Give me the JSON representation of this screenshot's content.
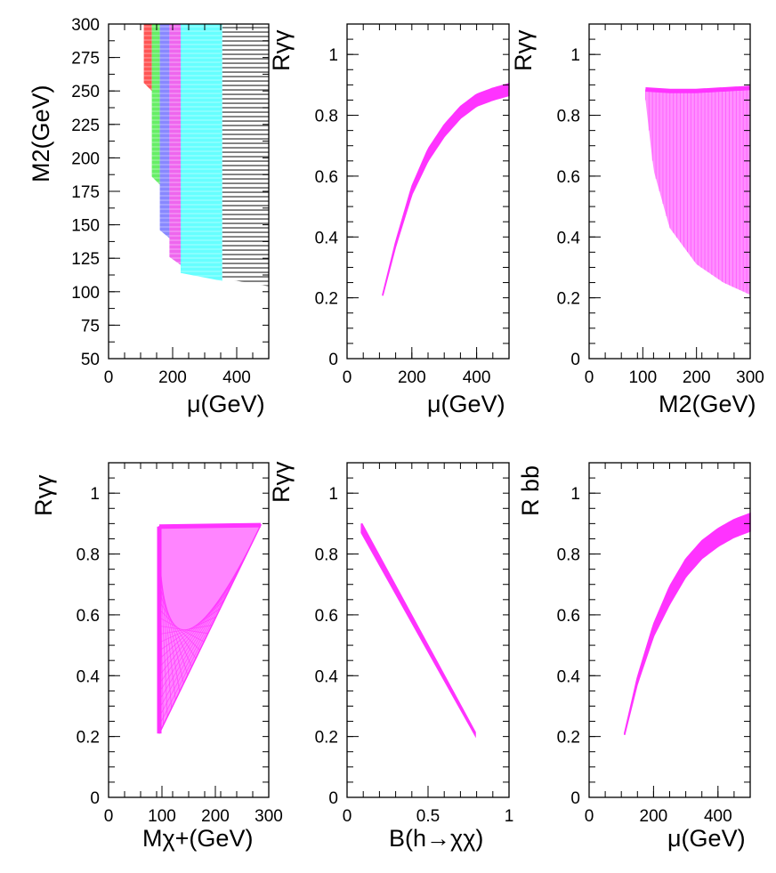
{
  "colors": {
    "magenta": "#ff33ff",
    "red": "#ff5555",
    "green": "#66ee66",
    "blue": "#8888ff",
    "violet": "#ee66ee",
    "cyan": "#66ffff",
    "black": "#555555"
  },
  "chart_data": [
    {
      "type": "scatter",
      "id": "p1",
      "title": "",
      "xlabel": "μ(GeV)",
      "ylabel": "M2(GeV)",
      "xlim": [
        0,
        500
      ],
      "ylim": [
        50,
        300
      ],
      "xticks": [
        0,
        200,
        400
      ],
      "yticks": [
        50,
        75,
        100,
        125,
        150,
        175,
        200,
        225,
        250,
        275,
        300
      ],
      "xtick_labels": [
        "0",
        "200",
        "400"
      ],
      "ytick_labels": [
        "50",
        "75",
        "100",
        "125",
        "150",
        "175",
        "200",
        "225",
        "250",
        "275",
        "300"
      ],
      "grid": false,
      "bands": [
        {
          "color": "red",
          "mu_range": [
            110,
            135
          ],
          "m2_min": 250
        },
        {
          "color": "green",
          "mu_range": [
            135,
            160
          ],
          "m2_min": 180
        },
        {
          "color": "blue",
          "mu_range": [
            160,
            190
          ],
          "m2_min": 140
        },
        {
          "color": "violet",
          "mu_range": [
            190,
            225
          ],
          "m2_min": 120
        },
        {
          "color": "cyan",
          "mu_range": [
            225,
            355
          ],
          "m2_min": 108
        },
        {
          "color": "black",
          "mu_range": [
            355,
            500
          ],
          "m2_min": 104
        }
      ]
    },
    {
      "type": "scatter",
      "id": "p2",
      "xlabel": "μ(GeV)",
      "ylabel": "Rγγ",
      "xlim": [
        0,
        500
      ],
      "ylim": [
        0,
        1.1
      ],
      "xticks": [
        0,
        200,
        400
      ],
      "yticks": [
        0,
        0.2,
        0.4,
        0.6,
        0.8,
        1
      ],
      "xtick_labels": [
        "0",
        "200",
        "400"
      ],
      "ytick_labels": [
        "0",
        "0.2",
        "0.4",
        "0.6",
        "0.8",
        "1"
      ],
      "x": [
        110,
        150,
        200,
        250,
        300,
        350,
        400,
        450,
        500
      ],
      "y": [
        0.21,
        0.38,
        0.56,
        0.68,
        0.76,
        0.82,
        0.86,
        0.88,
        0.895
      ],
      "band_width": 0.03
    },
    {
      "type": "scatter",
      "id": "p3",
      "xlabel": "M2(GeV)",
      "ylabel": "Rγγ",
      "xlim": [
        0,
        300
      ],
      "ylim": [
        0,
        1.1
      ],
      "xticks": [
        0,
        100,
        200,
        300
      ],
      "yticks": [
        0,
        0.2,
        0.4,
        0.6,
        0.8,
        1
      ],
      "xtick_labels": [
        "0",
        "100",
        "200",
        "300"
      ],
      "ytick_labels": [
        "0",
        "0.2",
        "0.4",
        "0.6",
        "0.8",
        "1"
      ],
      "upper": {
        "x": [
          105,
          150,
          200,
          250,
          300
        ],
        "y": [
          0.885,
          0.88,
          0.88,
          0.885,
          0.89
        ]
      },
      "lower": {
        "x": [
          105,
          120,
          150,
          200,
          250,
          300
        ],
        "y": [
          0.85,
          0.62,
          0.43,
          0.31,
          0.25,
          0.21
        ]
      }
    },
    {
      "type": "scatter",
      "id": "p4",
      "xlabel": "Mχ+(GeV)",
      "ylabel": "Rγγ",
      "xlim": [
        0,
        300
      ],
      "ylim": [
        0,
        1.1
      ],
      "xticks": [
        0,
        100,
        200,
        300
      ],
      "yticks": [
        0,
        0.2,
        0.4,
        0.6,
        0.8,
        1
      ],
      "xtick_labels": [
        "0",
        "100",
        "200",
        "300"
      ],
      "ytick_labels": [
        "0",
        "0.2",
        "0.4",
        "0.6",
        "0.8",
        "1"
      ],
      "polygon": {
        "x": [
          95,
          285,
          95
        ],
        "y": [
          0.89,
          0.895,
          0.21
        ]
      }
    },
    {
      "type": "scatter",
      "id": "p5",
      "xlabel": "B(h→χχ)",
      "ylabel": "Rγγ",
      "xlim": [
        0,
        1
      ],
      "ylim": [
        0,
        1.1
      ],
      "xticks": [
        0,
        0.5,
        1
      ],
      "yticks": [
        0,
        0.2,
        0.4,
        0.6,
        0.8,
        1
      ],
      "xtick_labels": [
        "0",
        "0.5",
        "1"
      ],
      "ytick_labels": [
        "0",
        "0.2",
        "0.4",
        "0.6",
        "0.8",
        "1"
      ],
      "x": [
        0.09,
        0.79
      ],
      "y": [
        0.89,
        0.21
      ],
      "band_width": 0.02
    },
    {
      "type": "scatter",
      "id": "p6",
      "xlabel": "μ(GeV)",
      "ylabel": "R bb",
      "xlim": [
        0,
        500
      ],
      "ylim": [
        0,
        1.1
      ],
      "xticks": [
        0,
        200,
        400
      ],
      "yticks": [
        0,
        0.2,
        0.4,
        0.6,
        0.8,
        1
      ],
      "xtick_labels": [
        "0",
        "200",
        "400"
      ],
      "ytick_labels": [
        "0",
        "0.2",
        "0.4",
        "0.6",
        "0.8",
        "1"
      ],
      "x": [
        110,
        150,
        200,
        250,
        300,
        350,
        400,
        450,
        500
      ],
      "y": [
        0.21,
        0.39,
        0.56,
        0.68,
        0.77,
        0.83,
        0.87,
        0.9,
        0.92
      ],
      "band_width": 0.045
    }
  ]
}
